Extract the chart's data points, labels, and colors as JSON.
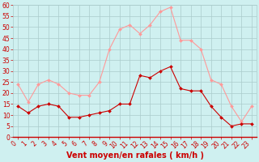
{
  "hours": [
    0,
    1,
    2,
    3,
    4,
    5,
    6,
    7,
    8,
    9,
    10,
    11,
    12,
    13,
    14,
    15,
    16,
    17,
    18,
    19,
    20,
    21,
    22,
    23
  ],
  "wind_avg": [
    14,
    11,
    14,
    15,
    14,
    9,
    9,
    10,
    11,
    12,
    15,
    15,
    28,
    27,
    30,
    32,
    22,
    21,
    21,
    14,
    9,
    5,
    6,
    6
  ],
  "wind_gust": [
    24,
    16,
    24,
    26,
    24,
    20,
    19,
    19,
    25,
    40,
    49,
    51,
    47,
    51,
    57,
    59,
    44,
    44,
    40,
    26,
    24,
    14,
    7,
    14
  ],
  "xlabel": "Vent moyen/en rafales ( km/h )",
  "ylim": [
    0,
    60
  ],
  "xlim_min": -0.5,
  "xlim_max": 23.5,
  "yticks": [
    0,
    5,
    10,
    15,
    20,
    25,
    30,
    35,
    40,
    45,
    50,
    55,
    60
  ],
  "ytick_labels": [
    "0",
    "5",
    "10",
    "15",
    "20",
    "25",
    "30",
    "35",
    "40",
    "45",
    "50",
    "55",
    "60"
  ],
  "xticks": [
    0,
    1,
    2,
    3,
    4,
    5,
    6,
    7,
    8,
    9,
    10,
    11,
    12,
    13,
    14,
    15,
    16,
    17,
    18,
    19,
    20,
    21,
    22,
    23
  ],
  "xtick_labels": [
    "0",
    "1",
    "2",
    "3",
    "4",
    "5",
    "6",
    "7",
    "8",
    "9",
    "10",
    "11",
    "12",
    "13",
    "14",
    "15",
    "16",
    "17",
    "18",
    "19",
    "20",
    "21",
    "22",
    "23"
  ],
  "bg_color": "#cff0f0",
  "grid_color": "#aacccc",
  "avg_color": "#cc0000",
  "gust_color": "#ff9999",
  "marker": "D",
  "marker_size": 2.0,
  "line_width": 0.8,
  "xlabel_fontsize": 7,
  "tick_fontsize": 5.5,
  "fig_width": 3.2,
  "fig_height": 2.0,
  "dpi": 100
}
